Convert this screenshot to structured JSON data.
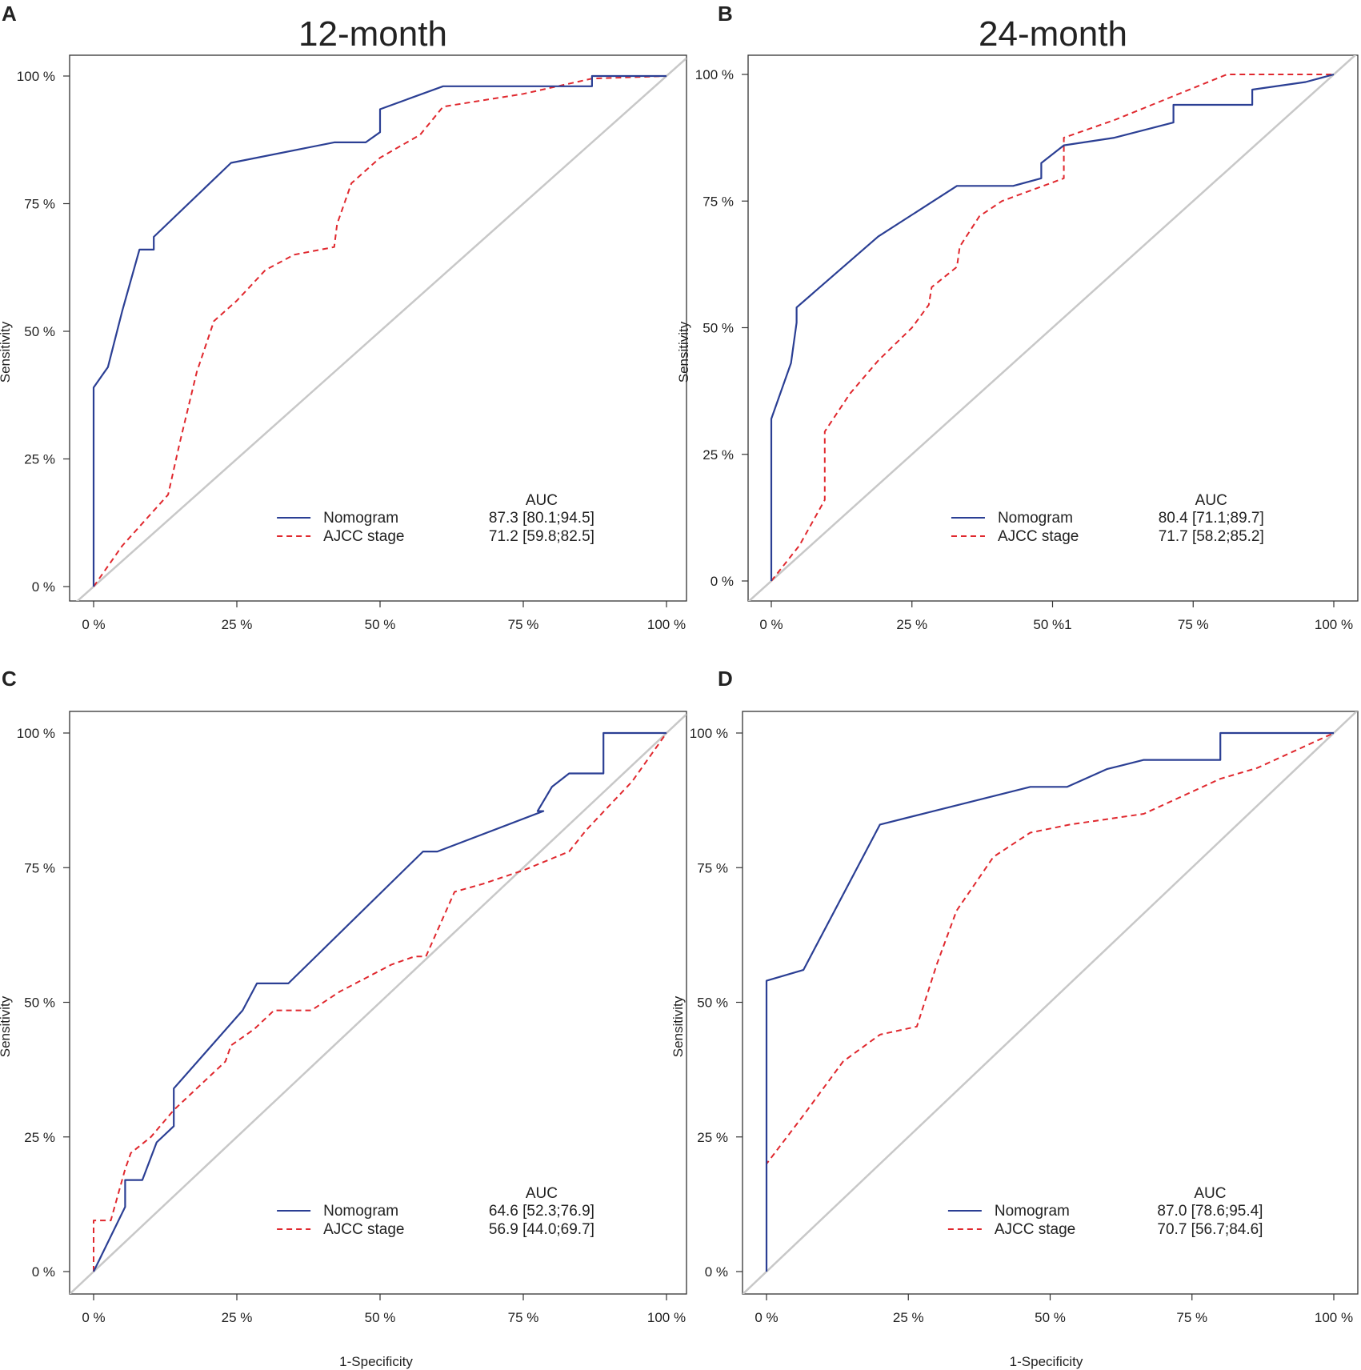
{
  "chart_data": [
    {
      "type": "line",
      "panel": "A",
      "title": "12-month",
      "xlabel": "",
      "ylabel": "Sensitivity",
      "xlim": [
        0,
        100
      ],
      "ylim": [
        0,
        100
      ],
      "x_ticks": [
        "0 %",
        "25 %",
        "50 %",
        "75 %",
        "100 %"
      ],
      "y_ticks": [
        "0 %",
        "25 %",
        "50 %",
        "75 %",
        "100 %"
      ],
      "legend": {
        "header": "AUC",
        "position": "bottom-right",
        "items": [
          {
            "label": "Nomogram",
            "auc": "87.3 [80.1;94.5]"
          },
          {
            "label": "AJCC stage",
            "auc": "71.2 [59.8;82.5]"
          }
        ]
      },
      "series": [
        {
          "name": "Nomogram",
          "style": "solid",
          "x": [
            0,
            0,
            2.5,
            5,
            8,
            10.5,
            10.5,
            24,
            42,
            47.5,
            50,
            50,
            61,
            87,
            87,
            100
          ],
          "y": [
            0,
            39,
            43,
            54,
            66,
            66,
            68.5,
            83,
            87,
            87,
            89,
            93.5,
            98,
            98,
            100,
            100
          ]
        },
        {
          "name": "AJCC stage",
          "style": "dashed",
          "x": [
            0,
            5,
            13,
            15,
            18,
            21,
            25,
            30,
            35,
            42,
            42.5,
            45,
            50,
            57,
            61,
            75,
            87,
            100
          ],
          "y": [
            0,
            8,
            18,
            28,
            42,
            52,
            56,
            62,
            65,
            66.5,
            71,
            79,
            84,
            88.5,
            94,
            96.5,
            99.5,
            100
          ]
        },
        {
          "name": "Reference",
          "style": "reference",
          "x": [
            0,
            100
          ],
          "y": [
            0,
            100
          ]
        }
      ]
    },
    {
      "type": "line",
      "panel": "B",
      "title": "24-month",
      "xlabel": "",
      "ylabel": "Sensitivity",
      "xlim": [
        0,
        100
      ],
      "ylim": [
        0,
        100
      ],
      "x_ticks": [
        "0 %",
        "25 %",
        "50 %1",
        "75 %",
        "100 %"
      ],
      "y_ticks": [
        "0 %",
        "25 %",
        "50 %",
        "75 %",
        "100 %"
      ],
      "legend": {
        "header": "AUC",
        "position": "bottom-right",
        "items": [
          {
            "label": "Nomogram",
            "auc": "80.4 [71.1;89.7]"
          },
          {
            "label": "AJCC stage",
            "auc": "71.7 [58.2;85.2]"
          }
        ]
      },
      "series": [
        {
          "name": "Nomogram",
          "style": "solid",
          "x": [
            0,
            0,
            3.5,
            4.5,
            4.5,
            19,
            33,
            43,
            48,
            48,
            52,
            61,
            71.5,
            71.5,
            85.5,
            85.5,
            95,
            100
          ],
          "y": [
            0,
            32,
            43,
            51,
            54,
            68,
            78,
            78,
            79.5,
            82.5,
            86,
            87.5,
            90.5,
            94,
            94,
            97,
            98.5,
            100
          ]
        },
        {
          "name": "AJCC stage",
          "style": "dashed",
          "x": [
            0,
            5,
            9.5,
            9.5,
            14,
            19,
            25,
            28,
            28.5,
            33,
            33.5,
            37,
            41,
            52,
            52,
            61,
            71,
            81,
            86,
            100
          ],
          "y": [
            0,
            7,
            16,
            29.5,
            37,
            43.5,
            50,
            54.5,
            58,
            62,
            66,
            72,
            75,
            79.5,
            87.5,
            91,
            95.5,
            100,
            100,
            100
          ]
        },
        {
          "name": "Reference",
          "style": "reference",
          "x": [
            0,
            100
          ],
          "y": [
            0,
            100
          ]
        }
      ]
    },
    {
      "type": "line",
      "panel": "C",
      "title": "",
      "xlabel": "1-Specificity",
      "ylabel": "Sensitivity",
      "xlim": [
        0,
        100
      ],
      "ylim": [
        0,
        100
      ],
      "x_ticks": [
        "0 %",
        "25 %",
        "50 %",
        "75 %",
        "100 %"
      ],
      "y_ticks": [
        "0 %",
        "25 %",
        "50 %",
        "75 %",
        "100 %"
      ],
      "legend": {
        "header": "AUC",
        "position": "bottom-right",
        "items": [
          {
            "label": "Nomogram",
            "auc": "64.6 [52.3;76.9]"
          },
          {
            "label": "AJCC stage",
            "auc": "56.9 [44.0;69.7]"
          }
        ]
      },
      "series": [
        {
          "name": "Nomogram",
          "style": "solid",
          "x": [
            0,
            5.5,
            5.5,
            8.5,
            11,
            14,
            14,
            26,
            28.5,
            34,
            57.5,
            60,
            78.5,
            77.5,
            80,
            83,
            89,
            89,
            100
          ],
          "y": [
            0,
            12,
            17,
            17,
            24,
            27,
            34,
            48.5,
            53.5,
            53.5,
            78,
            78,
            85.5,
            85.5,
            90,
            92.5,
            92.5,
            100,
            100
          ]
        },
        {
          "name": "AJCC stage",
          "style": "dashed",
          "x": [
            0,
            0,
            3,
            5.5,
            6.5,
            10,
            14,
            23,
            24,
            28,
            31.5,
            38,
            43,
            52,
            56,
            58,
            63,
            68,
            75,
            83,
            86,
            94,
            100
          ],
          "y": [
            0,
            9.5,
            9.5,
            19,
            22,
            25,
            30,
            39,
            42,
            45,
            48.5,
            48.5,
            52,
            57,
            58.5,
            58.5,
            70.5,
            72,
            74.5,
            78,
            82,
            91,
            100
          ]
        },
        {
          "name": "Reference",
          "style": "reference",
          "x": [
            0,
            100
          ],
          "y": [
            0,
            100
          ]
        }
      ]
    },
    {
      "type": "line",
      "panel": "D",
      "title": "",
      "xlabel": "1-Specificity",
      "ylabel": "Sensitivity",
      "xlim": [
        0,
        100
      ],
      "ylim": [
        0,
        100
      ],
      "x_ticks": [
        "0 %",
        "25 %",
        "50 %",
        "75 %",
        "100 %"
      ],
      "y_ticks": [
        "0 %",
        "25 %",
        "50 %",
        "75 %",
        "100 %"
      ],
      "legend": {
        "header": "AUC",
        "position": "bottom-right",
        "items": [
          {
            "label": "Nomogram",
            "auc": "87.0 [78.6;95.4]"
          },
          {
            "label": "AJCC stage",
            "auc": "70.7 [56.7;84.6]"
          }
        ]
      },
      "series": [
        {
          "name": "Nomogram",
          "style": "solid",
          "x": [
            0,
            0,
            6.5,
            20,
            46.5,
            53,
            60,
            66.5,
            80,
            80,
            100
          ],
          "y": [
            0,
            54,
            56,
            83,
            90,
            90,
            93.3,
            95,
            95,
            100,
            100
          ]
        },
        {
          "name": "AJCC stage",
          "style": "dashed",
          "x": [
            0,
            0,
            6.5,
            13.5,
            20,
            26.5,
            30,
            33.5,
            40,
            46.5,
            53.5,
            66.5,
            80,
            86.5,
            100
          ],
          "y": [
            0,
            20,
            29,
            39,
            44,
            45.5,
            57,
            67,
            77,
            81.5,
            83,
            85,
            91.5,
            93.5,
            100
          ]
        },
        {
          "name": "Reference",
          "style": "reference",
          "x": [
            0,
            100
          ],
          "y": [
            0,
            100
          ]
        }
      ]
    }
  ],
  "colors": {
    "nomogram": "#2b3f94",
    "ajcc": "#e0282e",
    "reference": "#c8c8c8",
    "axis": "#333333"
  }
}
